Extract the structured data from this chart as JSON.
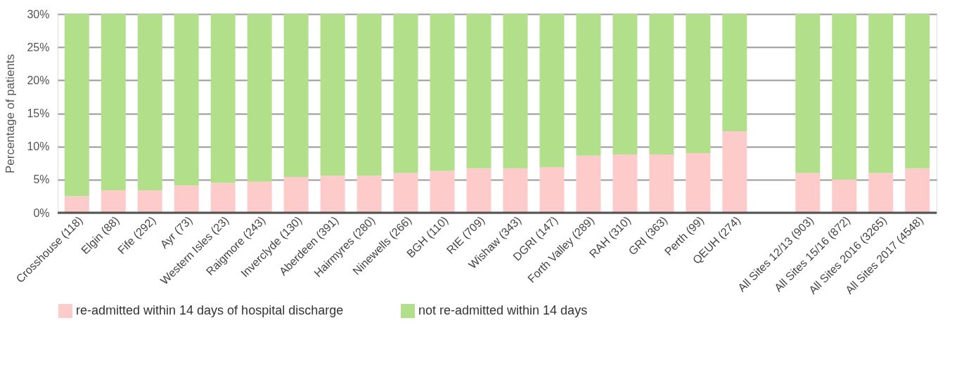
{
  "chart_data": {
    "type": "bar",
    "stacked": true,
    "ylabel": "Percentage of patients",
    "categories": [
      "Crosshouse (118)",
      "Elgin (88)",
      "Fife (292)",
      "Ayr (73)",
      "Western Isles (23)",
      "Raigmore (243)",
      "Inverclyde (130)",
      "Aberdeen (391)",
      "Hairmyres (280)",
      "Ninewells (266)",
      "BGH (110)",
      "RIE (709)",
      "Wishaw (343)",
      "DGRI (147)",
      "Forth Valley (289)",
      "RAH (310)",
      "GRI (363)",
      "Perth (99)",
      "QEUH (274)",
      null,
      "All Sites 12/13 (903)",
      "All Sites 15/16 (872)",
      "All Sites 2016 (3265)",
      "All Sites 2017 (4548)"
    ],
    "series": [
      {
        "name": "re-admitted within 14 days of hospital discharge",
        "color": "#fccbca",
        "values": [
          2.5,
          3.4,
          3.4,
          4.1,
          4.5,
          4.7,
          5.4,
          5.6,
          5.6,
          6.0,
          6.3,
          6.7,
          6.7,
          6.9,
          8.6,
          8.8,
          8.8,
          9.0,
          12.3,
          null,
          6.0,
          5.0,
          6.0,
          6.7
        ]
      },
      {
        "name": "not re-admitted within 14 days",
        "color": "#b2df8a",
        "values": [
          27.5,
          26.6,
          26.6,
          25.9,
          25.5,
          25.3,
          24.6,
          24.4,
          24.4,
          24.0,
          23.7,
          23.3,
          23.3,
          23.1,
          21.4,
          21.2,
          21.2,
          21.0,
          17.7,
          null,
          24.0,
          25.0,
          24.0,
          23.3
        ]
      }
    ],
    "ylim": [
      0,
      30
    ],
    "yticks": [
      {
        "value": 0,
        "label": "0%"
      },
      {
        "value": 5,
        "label": "5%"
      },
      {
        "value": 10,
        "label": "10%"
      },
      {
        "value": 15,
        "label": "15%"
      },
      {
        "value": 20,
        "label": "20%"
      },
      {
        "value": 25,
        "label": "25%"
      },
      {
        "value": 30,
        "label": "30%"
      }
    ],
    "grid": "y",
    "legend": "bottom"
  }
}
